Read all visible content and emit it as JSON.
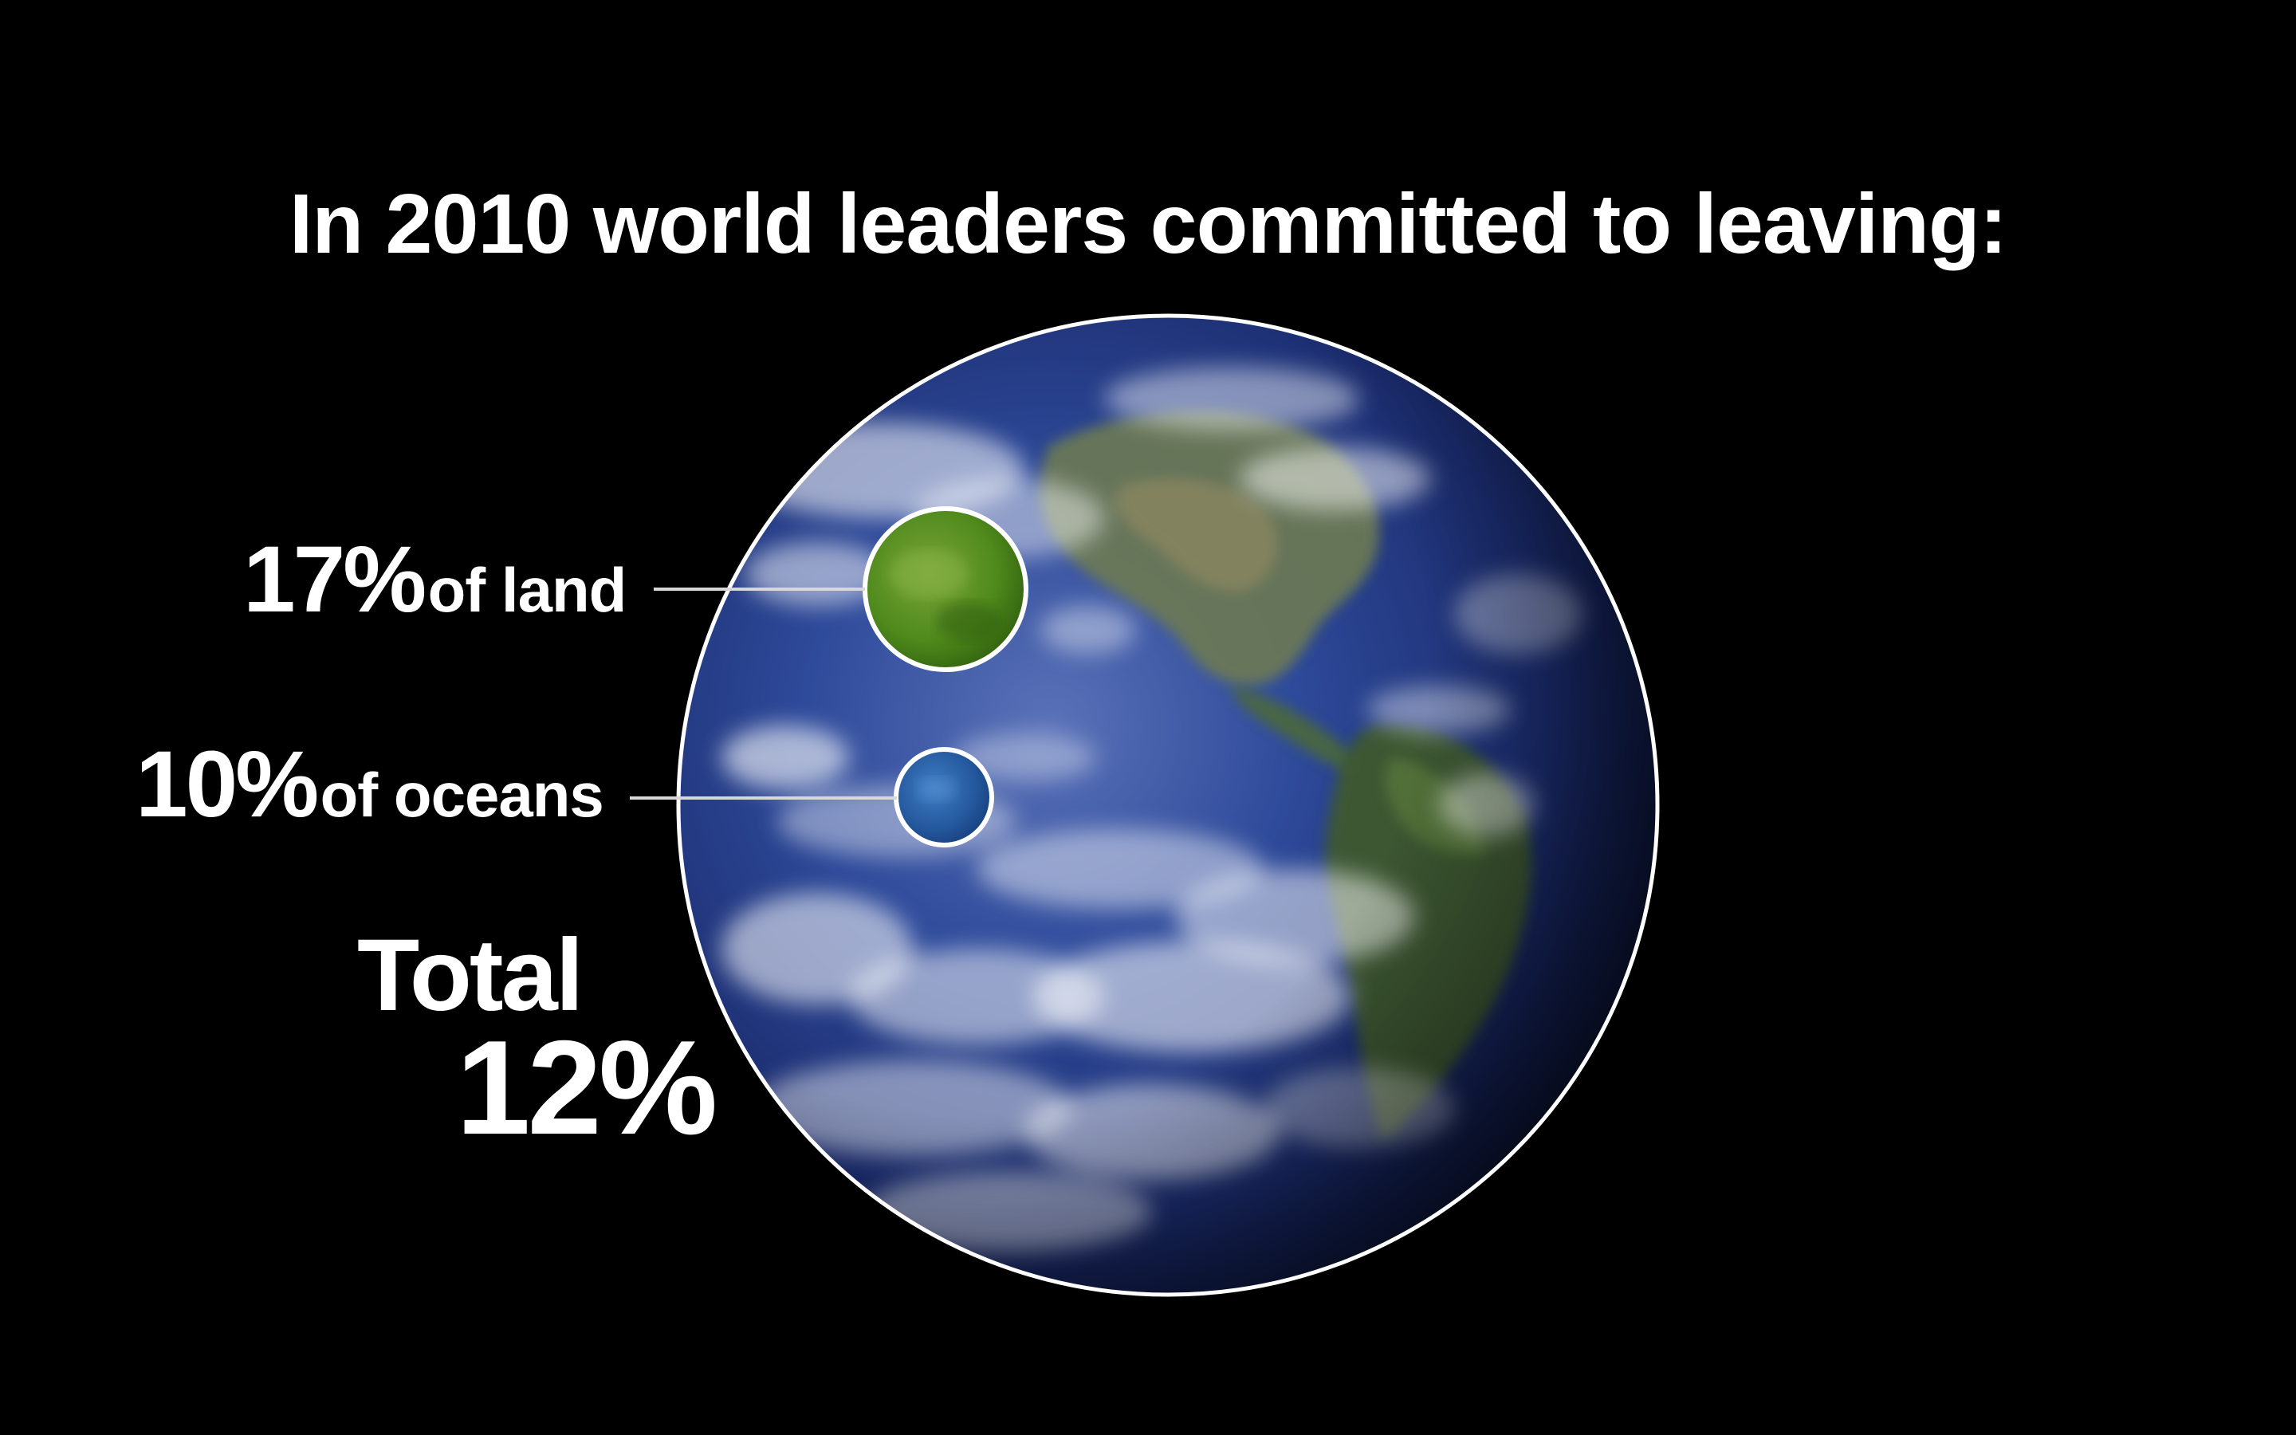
{
  "slide": {
    "title": "In 2010 world leaders committed to leaving:",
    "callouts": {
      "land": {
        "percent": "17%",
        "label": "of land",
        "value": 17,
        "color": "#5c9d1f"
      },
      "oceans": {
        "percent": "10%",
        "label": "of oceans",
        "value": 10,
        "color": "#2a62a8"
      }
    },
    "total": {
      "label": "Total",
      "value": "12%"
    },
    "colors": {
      "background": "#000000",
      "text": "#ffffff",
      "globe_outline": "#ffffff"
    },
    "image": {
      "name": "earth-globe"
    }
  }
}
